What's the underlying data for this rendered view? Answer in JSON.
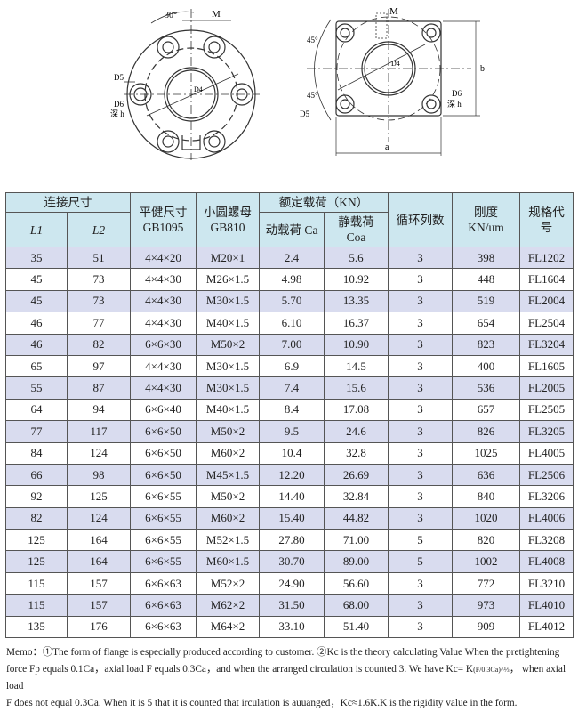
{
  "drawing_labels": {
    "angle30": "30°",
    "m": "M",
    "d5": "D5",
    "d6": "D6",
    "depth_h": "深 h",
    "d4": "D4",
    "angle45": "45°",
    "a": "a",
    "b": "b"
  },
  "table": {
    "header": {
      "group_connect": "连接尺寸",
      "l1": "L1",
      "l2": "L2",
      "key": "平健尺寸",
      "key_std": "GB1095",
      "nut": "小圆螺母",
      "nut_std": "GB810",
      "group_load": "额定载荷（KN）",
      "dynamic": "动载荷 Ca",
      "static": "静载荷",
      "static_unit": "Coa",
      "circuits": "循环列数",
      "rigidity": "刚度",
      "rigidity_unit": "KN/um",
      "model": "规格代",
      "model2": "号"
    },
    "rows": [
      [
        "35",
        "51",
        "4×4×20",
        "M20×1",
        "2.4",
        "5.6",
        "3",
        "398",
        "FL1202"
      ],
      [
        "45",
        "73",
        "4×4×30",
        "M26×1.5",
        "4.98",
        "10.92",
        "3",
        "448",
        "FL1604"
      ],
      [
        "45",
        "73",
        "4×4×30",
        "M30×1.5",
        "5.70",
        "13.35",
        "3",
        "519",
        "FL2004"
      ],
      [
        "46",
        "77",
        "4×4×30",
        "M40×1.5",
        "6.10",
        "16.37",
        "3",
        "654",
        "FL2504"
      ],
      [
        "46",
        "82",
        "6×6×30",
        "M50×2",
        "7.00",
        "10.90",
        "3",
        "823",
        "FL3204"
      ],
      [
        "65",
        "97",
        "4×4×30",
        "M30×1.5",
        "6.9",
        "14.5",
        "3",
        "400",
        "FL1605"
      ],
      [
        "55",
        "87",
        "4×4×30",
        "M30×1.5",
        "7.4",
        "15.6",
        "3",
        "536",
        "FL2005"
      ],
      [
        "64",
        "94",
        "6×6×40",
        "M40×1.5",
        "8.4",
        "17.08",
        "3",
        "657",
        "FL2505"
      ],
      [
        "77",
        "117",
        "6×6×50",
        "M50×2",
        "9.5",
        "24.6",
        "3",
        "826",
        "FL3205"
      ],
      [
        "84",
        "124",
        "6×6×50",
        "M60×2",
        "10.4",
        "32.8",
        "3",
        "1025",
        "FL4005"
      ],
      [
        "66",
        "98",
        "6×6×50",
        "M45×1.5",
        "12.20",
        "26.69",
        "3",
        "636",
        "FL2506"
      ],
      [
        "92",
        "125",
        "6×6×55",
        "M50×2",
        "14.40",
        "32.84",
        "3",
        "840",
        "FL3206"
      ],
      [
        "82",
        "124",
        "6×6×55",
        "M60×2",
        "15.40",
        "44.82",
        "3",
        "1020",
        "FL4006"
      ],
      [
        "125",
        "164",
        "6×6×55",
        "M52×1.5",
        "27.80",
        "71.00",
        "5",
        "820",
        "FL3208"
      ],
      [
        "125",
        "164",
        "6×6×55",
        "M60×1.5",
        "30.70",
        "89.00",
        "5",
        "1002",
        "FL4008"
      ],
      [
        "115",
        "157",
        "6×6×63",
        "M52×2",
        "24.90",
        "56.60",
        "3",
        "772",
        "FL3210"
      ],
      [
        "115",
        "157",
        "6×6×63",
        "M62×2",
        "31.50",
        "68.00",
        "3",
        "973",
        "FL4010"
      ],
      [
        "135",
        "176",
        "6×6×63",
        "M64×2",
        "33.10",
        "51.40",
        "3",
        "909",
        "FL4012"
      ]
    ]
  },
  "memo": {
    "line1": "Memo：①The form of flange is especially produced according to customer.  ②Kc is the theory calculating Value When the pretightening",
    "line2a": "force Fp equals 0.1Ca，axial load F equals 0.3Ca，and when the arranged circulation is counted 3.  We have Kc= K",
    "formula": "(F/0.3Ca)^⅓",
    "line2b": "，  when axial load",
    "line3": "F does not equal 0.3Ca.  When it is 5 that it is counted that irculation is auuanged，Kc≈1.6K.K is the rigidity value in the form."
  }
}
